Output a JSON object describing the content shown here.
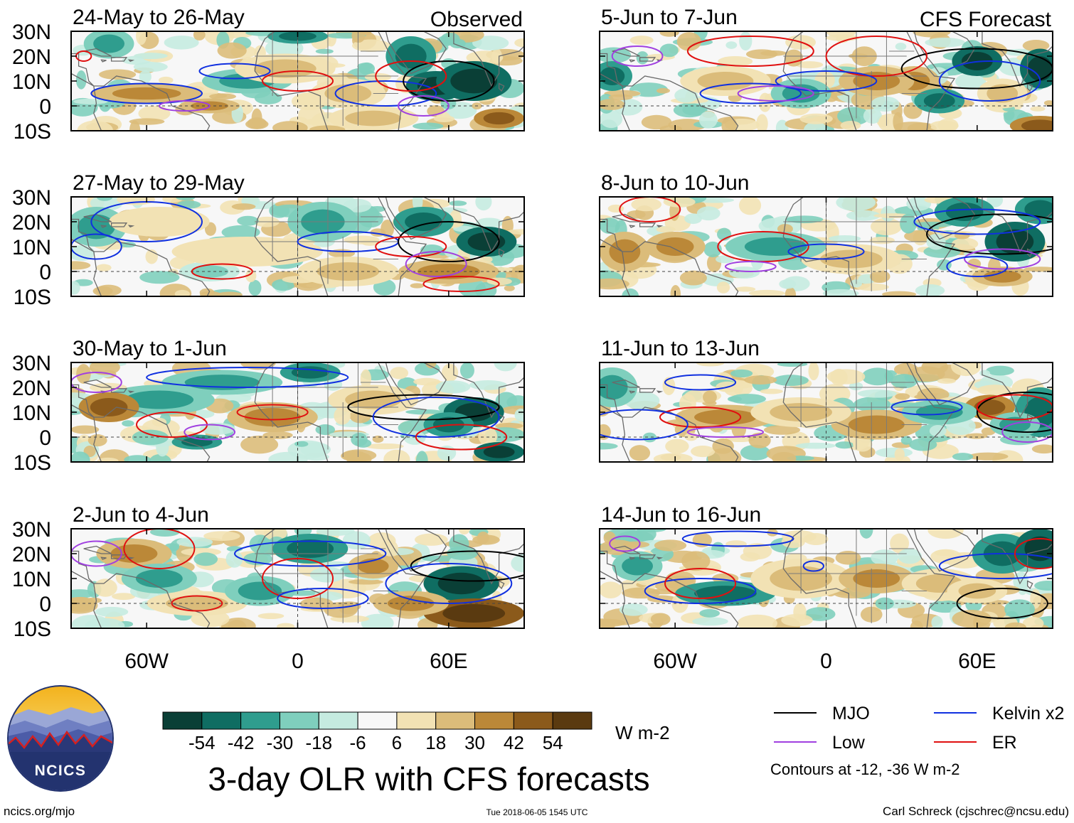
{
  "chart_data": {
    "type": "heatmap",
    "title": "3-day OLR with CFS forecasts",
    "units": "W m-2",
    "column_headers": {
      "observed": "Observed",
      "forecast": "CFS Forecast"
    },
    "lat_ticks": [
      "30N",
      "20N",
      "10N",
      "0",
      "10S"
    ],
    "lat_values": [
      30,
      20,
      10,
      0,
      -10
    ],
    "lon_ticks": [
      "60W",
      "0",
      "60E"
    ],
    "lon_values": [
      -60,
      0,
      60
    ],
    "xlim": [
      -90,
      90
    ],
    "ylim": [
      -10,
      30
    ],
    "colorbar": {
      "labels": [
        "-54",
        "-42",
        "-30",
        "-18",
        "-6",
        "6",
        "18",
        "30",
        "42",
        "54"
      ],
      "colors": [
        "#0a3f36",
        "#0f6d62",
        "#2f9d8e",
        "#7fcfbd",
        "#c5ebe0",
        "#f7f7f7",
        "#f2e2b4",
        "#dbbc7a",
        "#bb8838",
        "#8b5a1b",
        "#5a3a10"
      ]
    },
    "contour_legend": {
      "items": [
        {
          "label": "MJO",
          "color": "#000000"
        },
        {
          "label": "Kelvin x2",
          "color": "#1030e0"
        },
        {
          "label": "Low",
          "color": "#a040e0"
        },
        {
          "label": "ER",
          "color": "#e01010"
        }
      ],
      "note": "Contours at -12, -36 W m-2"
    },
    "panels": [
      {
        "label": "24-May to 26-May",
        "column": "observed"
      },
      {
        "label": "27-May to 29-May",
        "column": "observed"
      },
      {
        "label": "30-May to 1-Jun",
        "column": "observed"
      },
      {
        "label": "2-Jun to 4-Jun",
        "column": "observed"
      },
      {
        "label": "5-Jun to 7-Jun",
        "column": "forecast"
      },
      {
        "label": "8-Jun to 10-Jun",
        "column": "forecast"
      },
      {
        "label": "11-Jun to 13-Jun",
        "column": "forecast"
      },
      {
        "label": "14-Jun to 16-Jun",
        "column": "forecast"
      }
    ]
  },
  "logo": {
    "text": "NCICS"
  },
  "footer": {
    "url": "ncics.org/mjo",
    "timestamp": "Tue 2018-06-05 1545 UTC",
    "credit": "Carl Schreck (cjschrec@ncsu.edu)"
  }
}
